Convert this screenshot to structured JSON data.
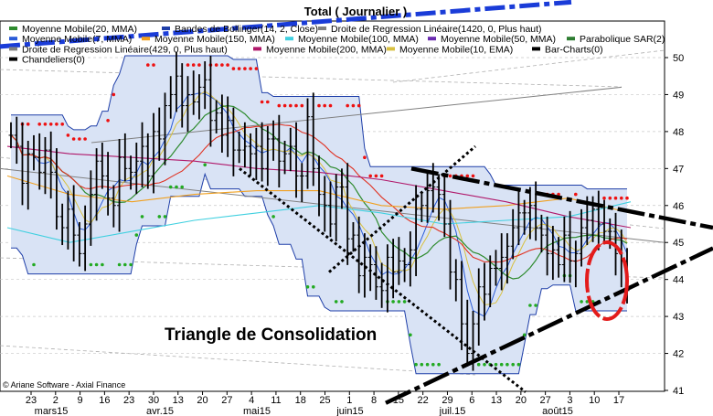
{
  "chart_data": {
    "type": "candlestick",
    "title": "Total  ( Journalier )",
    "y_axis": {
      "range": [
        41,
        51
      ],
      "ticks": [
        41,
        42,
        43,
        44,
        45,
        46,
        47,
        48,
        49,
        50
      ],
      "position": "right"
    },
    "x_axis": {
      "day_ticks": [
        "23",
        "2",
        "9",
        "16",
        "23",
        "30",
        "13",
        "20",
        "27",
        "4",
        "11",
        "18",
        "25",
        "1",
        "8",
        "15",
        "22",
        "29",
        "6",
        "13",
        "20",
        "27",
        "3",
        "10",
        "17"
      ],
      "month_labels": [
        "mars15",
        "avr.15",
        "mai15",
        "juin15",
        "juil.15",
        "août15"
      ]
    },
    "legend": [
      {
        "label": "Moyenne Mobile(20, MMA)",
        "color": "#2e8b2e"
      },
      {
        "label": "Bandes de Bollinger(14, 2, Close)",
        "color": "#1e3ea8"
      },
      {
        "label": "Droite de Regression Linéaire(1420, 0, Plus haut)",
        "color": "#808080"
      },
      {
        "label": "Moyenne Mobile(7, MMA)",
        "color": "#2a5bd7"
      },
      {
        "label": "Moyenne Mobile(150, MMA)",
        "color": "#f0a020"
      },
      {
        "label": "Moyenne Mobile(100, MMA)",
        "color": "#40d0e0"
      },
      {
        "label": "Moyenne Mobile(50, MMA)",
        "color": "#6a2bb0"
      },
      {
        "label": "Parabolique SAR(2)",
        "color": "#2e7d32"
      },
      {
        "label": "Droite de Regression Linéaire(429, 0, Plus haut)",
        "color": "#808080"
      },
      {
        "label": "Moyenne Mobile(200, MMA)",
        "color": "#b0186a"
      },
      {
        "label": "Moyenne Mobile(10, EMA)",
        "color": "#d8c040"
      },
      {
        "label": "Bar-Charts(0)",
        "color": "#000000"
      },
      {
        "label": "Chandeliers(0)",
        "color": "#000000"
      }
    ],
    "series": [
      {
        "name": "Close",
        "values": [
          47.9,
          47.6,
          46.6,
          47.4,
          47.3,
          46.9,
          47.5,
          46.9,
          45.7,
          45.4,
          45.9,
          45.2,
          44.7,
          45.5,
          46.3,
          47.2,
          46.8,
          46.2,
          46.0,
          47.3,
          47.0,
          46.9,
          47.2,
          47.6,
          46.8,
          48.0,
          47.8,
          48.7,
          49.0,
          49.5,
          48.7,
          49.0,
          48.8,
          49.2,
          49.4,
          48.3,
          48.5,
          47.9,
          48.3,
          47.5,
          47.5,
          47.6,
          47.4,
          47.6,
          47.0,
          47.8,
          47.8,
          47.2,
          47.4,
          47.6,
          46.8,
          46.8,
          48.4,
          47.0,
          46.3,
          46.0,
          45.5,
          46.5,
          46.5,
          45.1,
          45.2,
          44.1,
          44.6,
          44.4,
          43.8,
          43.7,
          44.6,
          44.2,
          44.5,
          44.4,
          44.8,
          45.9,
          46.0,
          46.4,
          46.5,
          46.3,
          45.5,
          44.2,
          44.0,
          42.8,
          42.0,
          42.8,
          43.8,
          43.6,
          44.3,
          44.3,
          44.6,
          44.9,
          45.4,
          45.8,
          45.8,
          46.0,
          45.4,
          45.2,
          44.7,
          44.8,
          44.4,
          45.2,
          44.5,
          44.7,
          45.4,
          45.6,
          45.9,
          45.5,
          45.3,
          45.3,
          44.7,
          44.5,
          43.7
        ]
      },
      {
        "name": "Moyenne Mobile(150, MMA)",
        "values": [
          46.8,
          46.3,
          46.1,
          46.3,
          46.4,
          46.4,
          46.0,
          45.9,
          46.0,
          46.2,
          45.8
        ]
      },
      {
        "name": "Moyenne Mobile(200, MMA)",
        "values": [
          47.6,
          47.4,
          47.3,
          47.2,
          47.0,
          46.9,
          46.7,
          46.4,
          46.1,
          45.7,
          45.4
        ]
      },
      {
        "name": "Moyenne Mobile(100, MMA)",
        "values": [
          45.4,
          45.0,
          45.3,
          45.6,
          45.8,
          46.0,
          45.8,
          45.5,
          45.6,
          45.7,
          46.1
        ]
      }
    ],
    "trendlines": {
      "resistance_upper": {
        "y_start": 47.0,
        "y_end": 45.4
      },
      "support_lower": {
        "y_start": 41.6,
        "y_end": 44.3
      },
      "long_dotted_descending": {
        "y_start": 47.0,
        "y_end": 41.5
      }
    },
    "annotations": [
      "Triangle de Consolidation"
    ],
    "credit": "© Ariane Software - Axial Finance"
  },
  "colors": {
    "band_fill": "#d9e3f5",
    "band_line": "#1e3ea8",
    "sar": "#22aa22",
    "sar_red": "#ee1111",
    "circle": "#e31b1b",
    "long_regression": "#1a3cd8"
  }
}
